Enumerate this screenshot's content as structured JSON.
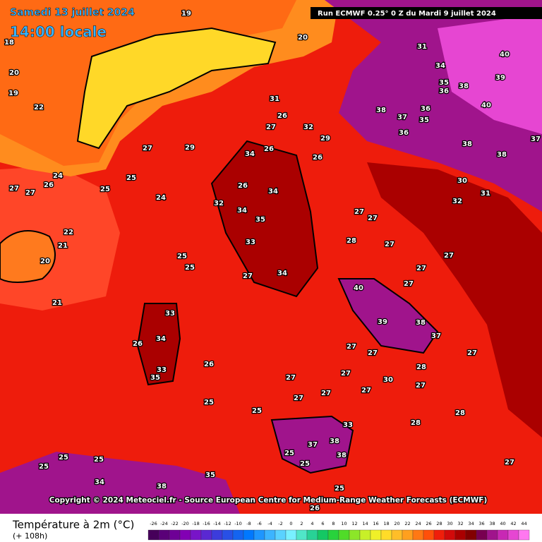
{
  "header": {
    "date": "Samedi 13 juillet 2024",
    "time": "14:00 locale",
    "run": "Run ECMWF 0.25° 0 Z du Mardi 9 juillet 2024"
  },
  "copyright": "Copyright © 2024 Meteociel.fr - Source European Centre for Medium-Range Weather Forecasts (ECMWF)",
  "legend": {
    "title": "Température à 2m (°C)",
    "subtitle": "(+ 108h)",
    "ticks": [
      -26,
      -24,
      -22,
      -20,
      -18,
      -16,
      -14,
      -12,
      -10,
      -8,
      -6,
      -4,
      -2,
      0,
      2,
      4,
      6,
      8,
      10,
      12,
      14,
      16,
      18,
      20,
      22,
      24,
      26,
      28,
      30,
      32,
      34,
      36,
      38,
      40,
      42,
      44
    ],
    "colors": [
      "#46005a",
      "#5a0078",
      "#6e0096",
      "#8200b4",
      "#7814c8",
      "#5a28d2",
      "#3c3cdc",
      "#2850e6",
      "#1464f0",
      "#0078ff",
      "#1e96ff",
      "#3cb4ff",
      "#5ad2ff",
      "#78f0ff",
      "#50e6c8",
      "#28d296",
      "#14c864",
      "#28d23c",
      "#50dc28",
      "#8ce628",
      "#c8f028",
      "#f0f028",
      "#ffdc28",
      "#ffbe28",
      "#ffa01e",
      "#ff7814",
      "#ff500a",
      "#f01e0a",
      "#d20a0a",
      "#aa0000",
      "#820000",
      "#780050",
      "#a0148c",
      "#c828b4",
      "#e646d2",
      "#ff78f0"
    ]
  },
  "map_labels": [
    19,
    20,
    31,
    40,
    34,
    39,
    35,
    36,
    38,
    31,
    40,
    38,
    37,
    36,
    35,
    36,
    38,
    38,
    37,
    26,
    27,
    32,
    29,
    34,
    26,
    26,
    27,
    29,
    25,
    24,
    27,
    27,
    26,
    25,
    24,
    26,
    34,
    32,
    34,
    35,
    33,
    28,
    27,
    27,
    27,
    30,
    32,
    31,
    22,
    21,
    20,
    21,
    25,
    25,
    27,
    34,
    27,
    27,
    27,
    33,
    34,
    26,
    33,
    35,
    26,
    40,
    39,
    38,
    37,
    27,
    27,
    27,
    28,
    27,
    27,
    30,
    27,
    25,
    25,
    27,
    27,
    27,
    28,
    28,
    33,
    37,
    38,
    38,
    25,
    25,
    25,
    25,
    25,
    38,
    35,
    34,
    27,
    26,
    25,
    20,
    19,
    22,
    18
  ]
}
